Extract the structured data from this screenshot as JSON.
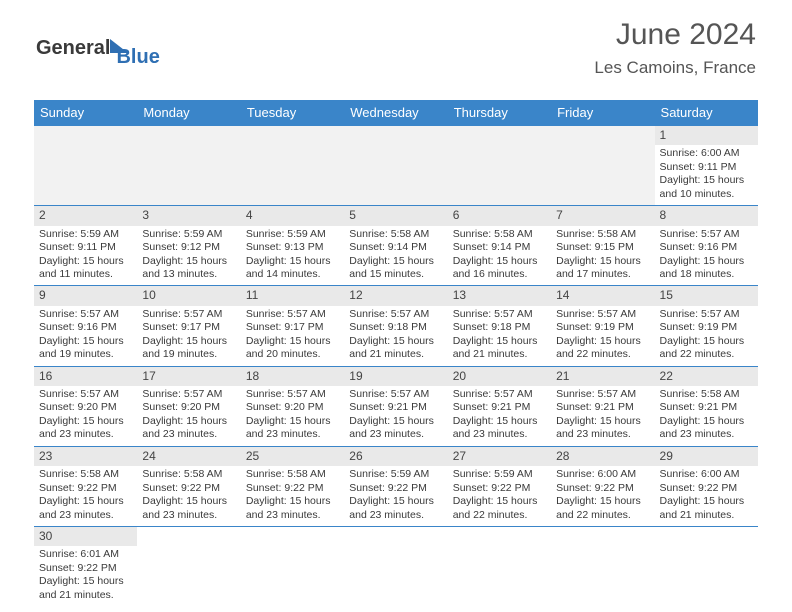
{
  "logo": {
    "part1": "General",
    "part2": "Blue"
  },
  "header": {
    "month_title": "June 2024",
    "location": "Les Camoins, France"
  },
  "calendar": {
    "colors": {
      "header_bg": "#3a85c9",
      "header_text": "#ffffff",
      "daynum_bg": "#e9e9e9",
      "empty_bg": "#f2f2f2",
      "row_border": "#3a85c9",
      "text": "#3a3a3a"
    },
    "day_names": [
      "Sunday",
      "Monday",
      "Tuesday",
      "Wednesday",
      "Thursday",
      "Friday",
      "Saturday"
    ],
    "weeks": [
      [
        null,
        null,
        null,
        null,
        null,
        null,
        {
          "n": "1",
          "sr": "6:00 AM",
          "ss": "9:11 PM",
          "dl": "15 hours and 10 minutes."
        }
      ],
      [
        {
          "n": "2",
          "sr": "5:59 AM",
          "ss": "9:11 PM",
          "dl": "15 hours and 11 minutes."
        },
        {
          "n": "3",
          "sr": "5:59 AM",
          "ss": "9:12 PM",
          "dl": "15 hours and 13 minutes."
        },
        {
          "n": "4",
          "sr": "5:59 AM",
          "ss": "9:13 PM",
          "dl": "15 hours and 14 minutes."
        },
        {
          "n": "5",
          "sr": "5:58 AM",
          "ss": "9:14 PM",
          "dl": "15 hours and 15 minutes."
        },
        {
          "n": "6",
          "sr": "5:58 AM",
          "ss": "9:14 PM",
          "dl": "15 hours and 16 minutes."
        },
        {
          "n": "7",
          "sr": "5:58 AM",
          "ss": "9:15 PM",
          "dl": "15 hours and 17 minutes."
        },
        {
          "n": "8",
          "sr": "5:57 AM",
          "ss": "9:16 PM",
          "dl": "15 hours and 18 minutes."
        }
      ],
      [
        {
          "n": "9",
          "sr": "5:57 AM",
          "ss": "9:16 PM",
          "dl": "15 hours and 19 minutes."
        },
        {
          "n": "10",
          "sr": "5:57 AM",
          "ss": "9:17 PM",
          "dl": "15 hours and 19 minutes."
        },
        {
          "n": "11",
          "sr": "5:57 AM",
          "ss": "9:17 PM",
          "dl": "15 hours and 20 minutes."
        },
        {
          "n": "12",
          "sr": "5:57 AM",
          "ss": "9:18 PM",
          "dl": "15 hours and 21 minutes."
        },
        {
          "n": "13",
          "sr": "5:57 AM",
          "ss": "9:18 PM",
          "dl": "15 hours and 21 minutes."
        },
        {
          "n": "14",
          "sr": "5:57 AM",
          "ss": "9:19 PM",
          "dl": "15 hours and 22 minutes."
        },
        {
          "n": "15",
          "sr": "5:57 AM",
          "ss": "9:19 PM",
          "dl": "15 hours and 22 minutes."
        }
      ],
      [
        {
          "n": "16",
          "sr": "5:57 AM",
          "ss": "9:20 PM",
          "dl": "15 hours and 23 minutes."
        },
        {
          "n": "17",
          "sr": "5:57 AM",
          "ss": "9:20 PM",
          "dl": "15 hours and 23 minutes."
        },
        {
          "n": "18",
          "sr": "5:57 AM",
          "ss": "9:20 PM",
          "dl": "15 hours and 23 minutes."
        },
        {
          "n": "19",
          "sr": "5:57 AM",
          "ss": "9:21 PM",
          "dl": "15 hours and 23 minutes."
        },
        {
          "n": "20",
          "sr": "5:57 AM",
          "ss": "9:21 PM",
          "dl": "15 hours and 23 minutes."
        },
        {
          "n": "21",
          "sr": "5:57 AM",
          "ss": "9:21 PM",
          "dl": "15 hours and 23 minutes."
        },
        {
          "n": "22",
          "sr": "5:58 AM",
          "ss": "9:21 PM",
          "dl": "15 hours and 23 minutes."
        }
      ],
      [
        {
          "n": "23",
          "sr": "5:58 AM",
          "ss": "9:22 PM",
          "dl": "15 hours and 23 minutes."
        },
        {
          "n": "24",
          "sr": "5:58 AM",
          "ss": "9:22 PM",
          "dl": "15 hours and 23 minutes."
        },
        {
          "n": "25",
          "sr": "5:58 AM",
          "ss": "9:22 PM",
          "dl": "15 hours and 23 minutes."
        },
        {
          "n": "26",
          "sr": "5:59 AM",
          "ss": "9:22 PM",
          "dl": "15 hours and 23 minutes."
        },
        {
          "n": "27",
          "sr": "5:59 AM",
          "ss": "9:22 PM",
          "dl": "15 hours and 22 minutes."
        },
        {
          "n": "28",
          "sr": "6:00 AM",
          "ss": "9:22 PM",
          "dl": "15 hours and 22 minutes."
        },
        {
          "n": "29",
          "sr": "6:00 AM",
          "ss": "9:22 PM",
          "dl": "15 hours and 21 minutes."
        }
      ],
      [
        {
          "n": "30",
          "sr": "6:01 AM",
          "ss": "9:22 PM",
          "dl": "15 hours and 21 minutes."
        },
        null,
        null,
        null,
        null,
        null,
        null
      ]
    ],
    "labels": {
      "sunrise": "Sunrise:",
      "sunset": "Sunset:",
      "daylight": "Daylight:"
    }
  }
}
